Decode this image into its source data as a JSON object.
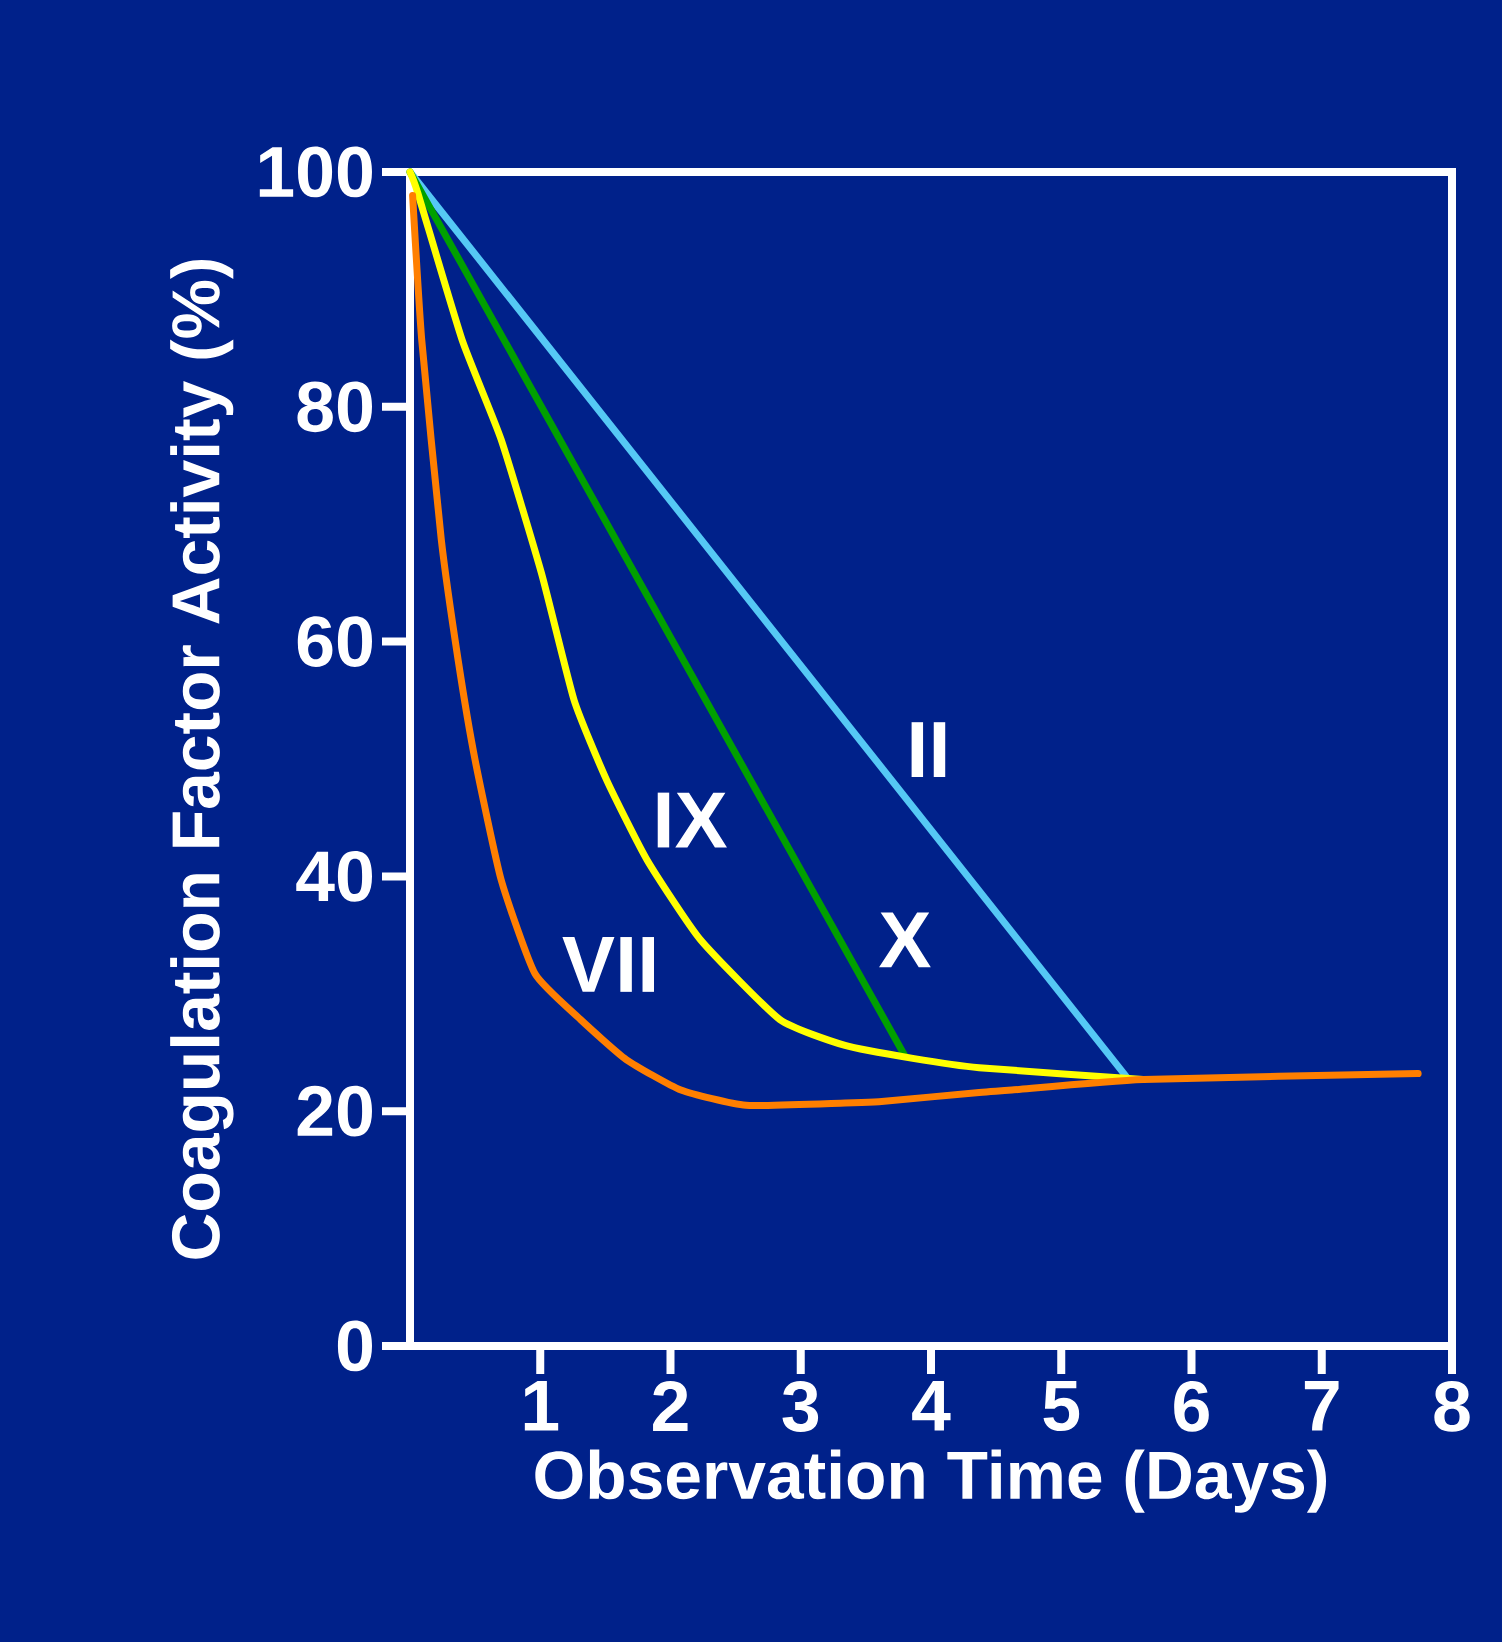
{
  "chart_data": {
    "type": "line",
    "xlabel": "Observation Time (Days)",
    "ylabel": "Coagulation Factor Activity (%)",
    "xlim": [
      0,
      8
    ],
    "ylim": [
      0,
      100
    ],
    "xticks": [
      1,
      2,
      3,
      4,
      5,
      6,
      7,
      8
    ],
    "yticks": [
      0,
      20,
      40,
      60,
      80,
      100
    ],
    "marker": "none",
    "line_style": "solid",
    "series": [
      {
        "name": "II",
        "color": "#55c8f5",
        "x": [
          0,
          5.51
        ],
        "values": [
          100,
          22.8
        ]
      },
      {
        "name": "X",
        "color": "#00a000",
        "x": [
          0,
          3.8
        ],
        "values": [
          100,
          24.7
        ]
      },
      {
        "name": "IX",
        "color": "#ffff00",
        "x": [
          0,
          0.06,
          0.4,
          0.7,
          1.01,
          1.26,
          1.51,
          1.82,
          2.23,
          2.84,
          3.34,
          3.86,
          4.37,
          5.63
        ],
        "values": [
          100,
          98.2,
          85.7,
          77.2,
          65.8,
          55,
          48.2,
          41.4,
          34.6,
          27.8,
          25.6,
          24.5,
          23.7,
          22.7
        ]
      },
      {
        "name": "VII",
        "color": "#ff7f00",
        "x": [
          0.02,
          0.09,
          0.24,
          0.37,
          0.5,
          0.7,
          0.96,
          1.31,
          1.66,
          2.08,
          2.58,
          3.34,
          3.6,
          4.37,
          4.62,
          5.63,
          7.74
        ],
        "values": [
          98,
          85.7,
          68.7,
          58.4,
          49.9,
          39.7,
          31.7,
          27.8,
          24.4,
          21.8,
          20.5,
          20.7,
          20.8,
          21.6,
          21.8,
          22.7,
          23.2
        ]
      }
    ]
  }
}
